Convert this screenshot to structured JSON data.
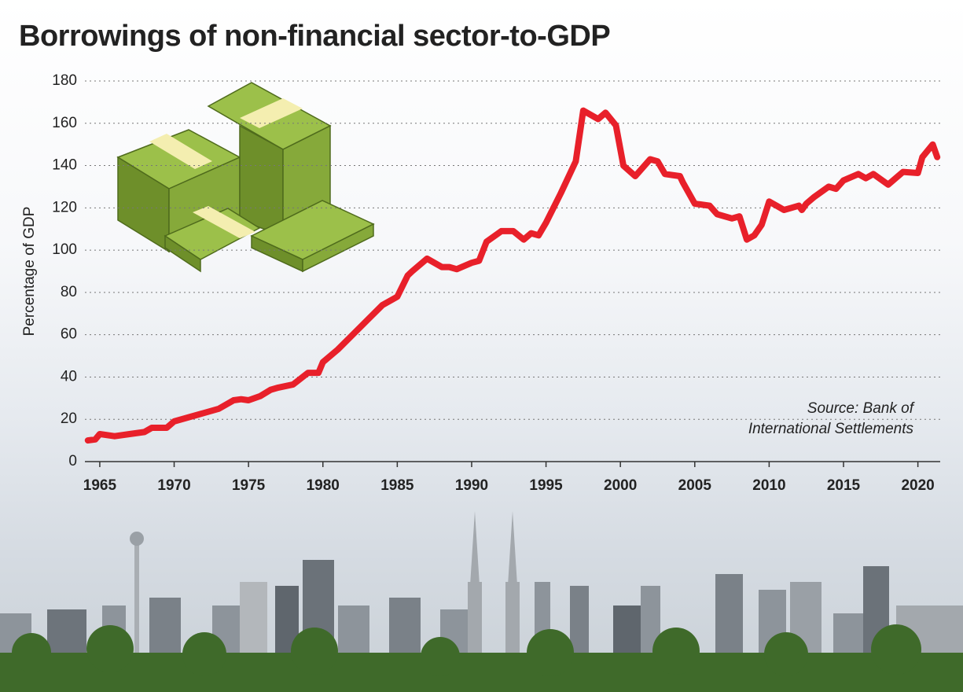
{
  "chart_data": {
    "type": "line",
    "title": "Borrowings of non-financial sector-to-GDP",
    "y_label": "Percentage of GDP",
    "annotation": [
      "Source: Bank of",
      "International Settlements"
    ],
    "xlim": [
      1964,
      2021.5
    ],
    "xticks": [
      1965,
      1970,
      1975,
      1980,
      1985,
      1990,
      1995,
      2000,
      2005,
      2010,
      2015,
      2020
    ],
    "ylim": [
      0,
      180
    ],
    "yticks": [
      0,
      20,
      40,
      60,
      80,
      100,
      120,
      140,
      160,
      180
    ],
    "grid": true,
    "series": [
      {
        "name": "Borrowings of non-financial sector-to-GDP",
        "color": "#e8202a",
        "x": [
          1964.2,
          1964.7,
          1965,
          1966,
          1967,
          1968,
          1968.5,
          1969.5,
          1970,
          1971,
          1972,
          1973,
          1974,
          1974.5,
          1975,
          1975.8,
          1976.5,
          1977,
          1978,
          1979,
          1979.7,
          1980,
          1981,
          1982,
          1983,
          1984,
          1985,
          1985.7,
          1986,
          1987,
          1988,
          1988.5,
          1989,
          1990,
          1990.5,
          1991,
          1992,
          1992.8,
          1993.5,
          1994,
          1994.5,
          1995,
          1996,
          1997,
          1997.5,
          1998.5,
          1999,
          1999.7,
          2000.2,
          2001,
          2002,
          2002.5,
          2003,
          2004,
          2004.2,
          2005,
          2006,
          2006.5,
          2007.5,
          2008,
          2008.5,
          2009,
          2009.5,
          2010,
          2010.5,
          2011,
          2011.5,
          2012,
          2012.2,
          2012.5,
          2013,
          2014,
          2014.5,
          2015,
          2016,
          2016.5,
          2017,
          2018,
          2019,
          2020,
          2020.3,
          2021,
          2021.3
        ],
        "values": [
          10,
          10.5,
          13,
          12,
          13,
          14,
          16,
          16,
          19,
          21,
          23,
          25,
          29,
          29.5,
          29,
          31,
          34,
          35,
          36.5,
          42,
          42,
          47,
          53,
          60,
          67,
          74,
          78,
          88,
          90,
          96,
          92,
          92,
          91,
          94,
          95,
          104,
          109,
          109,
          105,
          108,
          107,
          113,
          127,
          142,
          166,
          162,
          165,
          159,
          140,
          135,
          143,
          142,
          136,
          135,
          132,
          122,
          121,
          117,
          115,
          116,
          105,
          107,
          112,
          123,
          121,
          119,
          120,
          121,
          119,
          122,
          125,
          130,
          129,
          133,
          136,
          134,
          136,
          131,
          137,
          136.5,
          144,
          150,
          144
        ]
      }
    ]
  }
}
